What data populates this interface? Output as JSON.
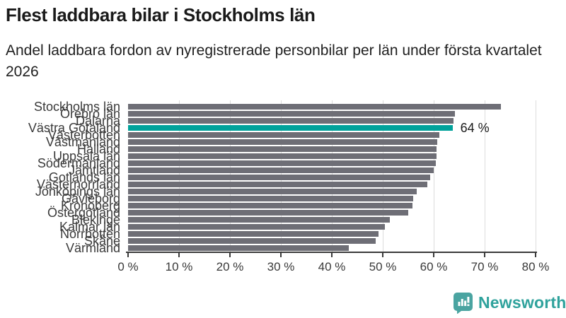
{
  "header": {
    "title": "Flest laddbara bilar i Stockholms län",
    "subtitle": "Andel laddbara fordon av nyregistrerade personbilar per län under första kvartalet 2026"
  },
  "branding": {
    "name": "Newsworthy",
    "icon": "newsworthy-speech-bubble-barchart-icon"
  },
  "colors": {
    "bar": "#6e6e76",
    "highlight": "#00a29b",
    "axis": "#3a3a3a",
    "grid": "#dcdcdc",
    "brand": "#2fa29c",
    "text": "#1a1a1a"
  },
  "chart_data": {
    "type": "bar",
    "orientation": "horizontal",
    "title": "Flest laddbara bilar i Stockholms län",
    "subtitle": "Andel laddbara fordon av nyregistrerade personbilar per län under första kvartalet 2026",
    "xlabel": "",
    "ylabel": "",
    "xlim": [
      0,
      80
    ],
    "grid": true,
    "x_tick_labels": [
      "0 %",
      "10 %",
      "20 %",
      "30 %",
      "40 %",
      "50 %",
      "60 %",
      "70 %",
      "80 %"
    ],
    "x_tick_values": [
      0,
      10,
      20,
      30,
      40,
      50,
      60,
      70,
      80
    ],
    "categories": [
      "Stockholms län",
      "Örebro län",
      "Dalarna",
      "Västra Götaland",
      "Västerbotten",
      "Västmanland",
      "Halland",
      "Uppsala län",
      "Södermanland",
      "Jämtland",
      "Gotlands län",
      "Västernorrland",
      "Jönköpings län",
      "Gävleborg",
      "Kronoberg",
      "Östergötland",
      "Blekinge",
      "Kalmar län",
      "Norrbotten",
      "Skåne",
      "Värmland"
    ],
    "values": [
      73.2,
      64.1,
      63.9,
      63.7,
      61.1,
      60.7,
      60.5,
      60.5,
      60.4,
      60.0,
      59.3,
      58.7,
      56.6,
      56.0,
      55.8,
      55.0,
      51.4,
      50.4,
      49.2,
      48.6,
      43.4
    ],
    "highlight_index": 3,
    "highlight_category": "Västra Götaland",
    "highlight_label": "64 %"
  }
}
